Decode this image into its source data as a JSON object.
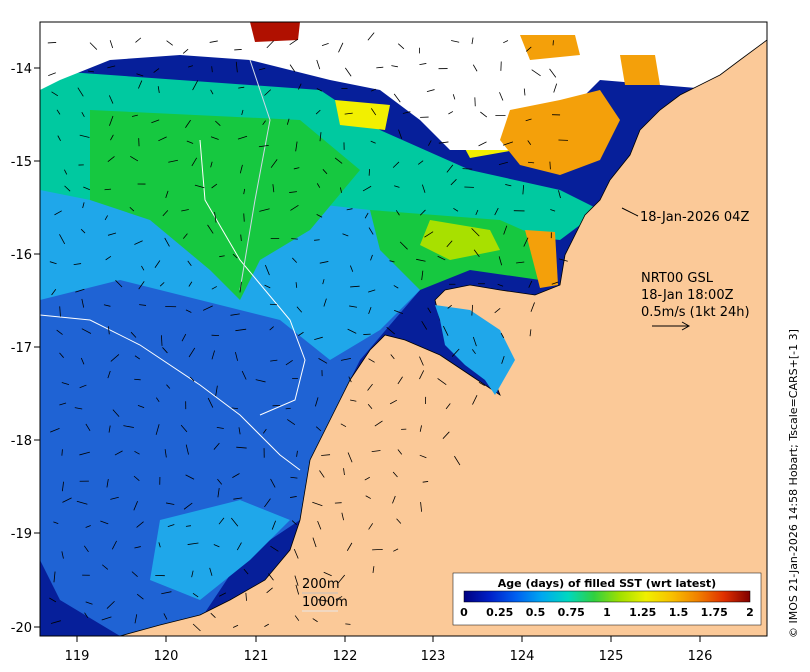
{
  "map": {
    "x_ticks": [
      "119",
      "120",
      "121",
      "122",
      "123",
      "124",
      "125",
      "126"
    ],
    "y_ticks": [
      "-14",
      "-15",
      "-16",
      "-17",
      "-18",
      "-19",
      "-20"
    ],
    "colors": {
      "land": "#fbc998",
      "cloud": "#ffffff",
      "ocean_deep": "#061f9a",
      "ocean_mid": "#1f63d4",
      "ocean_light": "#1fa7ea",
      "teal": "#00c9a0",
      "green": "#16c840",
      "lime": "#a8e000",
      "yellow": "#f2f000",
      "orange": "#f4a00a",
      "red": "#b01000"
    }
  },
  "annotations": {
    "swath_time": "18-Jan-2026 04Z",
    "current_title": "NRT00 GSL",
    "current_time": "18-Jan 18:00Z",
    "current_scale": "0.5m/s (1kt 24h)",
    "isobath_200": "200m",
    "isobath_1000": "1000m"
  },
  "colorbar": {
    "title": "Age (days) of filled SST (wrt latest)",
    "ticks": [
      "0",
      "0.25",
      "0.5",
      "0.75",
      "1",
      "1.25",
      "1.5",
      "1.75",
      "2"
    ],
    "colors": [
      "#000080",
      "#0020c8",
      "#0060f0",
      "#00a8f0",
      "#00d8c0",
      "#30d040",
      "#a0e000",
      "#f0f000",
      "#f8c000",
      "#f08000",
      "#e03000",
      "#800000"
    ]
  },
  "credit": "© IMOS 21-Jan-2026 14:58 Hobart; Tscale=CARS+[-1 3]"
}
